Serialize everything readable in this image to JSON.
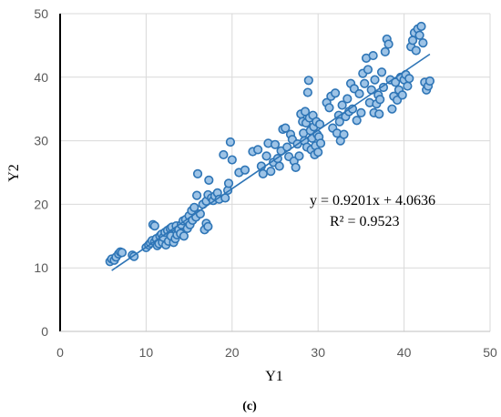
{
  "chart_data": {
    "type": "scatter",
    "title": "",
    "xlabel": "Y1",
    "ylabel": "Y2",
    "xlim": [
      0,
      50
    ],
    "ylim": [
      0,
      50
    ],
    "x_ticks": [
      "0",
      "10",
      "20",
      "30",
      "40",
      "50"
    ],
    "y_ticks": [
      "0",
      "10",
      "20",
      "30",
      "40",
      "50"
    ],
    "grid": true,
    "legend": "none",
    "panel_label": "(c)",
    "colors": {
      "marker_fill": "#9dc3e6",
      "marker_edge": "#2e75b6",
      "trendline": "#2e75b6",
      "grid": "#d9d9d9"
    },
    "trendline": {
      "type": "linear",
      "slope": 0.9201,
      "intercept": 4.0636,
      "x_range": [
        6,
        43
      ],
      "equation_label": "y = 0.9201x + 4.0636",
      "r2_label": "R² = 0.9523"
    },
    "series": [
      {
        "points": [
          [
            5.8,
            11.0
          ],
          [
            6.0,
            11.4
          ],
          [
            6.3,
            11.2
          ],
          [
            6.5,
            11.7
          ],
          [
            6.8,
            12.2
          ],
          [
            7.0,
            12.5
          ],
          [
            7.2,
            12.4
          ],
          [
            8.4,
            12.0
          ],
          [
            8.6,
            11.8
          ],
          [
            10.0,
            13.2
          ],
          [
            10.3,
            13.6
          ],
          [
            10.5,
            13.9
          ],
          [
            10.7,
            14.3
          ],
          [
            10.8,
            16.8
          ],
          [
            11.0,
            16.6
          ],
          [
            11.0,
            14.1
          ],
          [
            11.2,
            14.6
          ],
          [
            11.3,
            13.5
          ],
          [
            11.5,
            13.8
          ],
          [
            11.6,
            15.0
          ],
          [
            11.8,
            15.3
          ],
          [
            11.9,
            14.0
          ],
          [
            12.0,
            14.8
          ],
          [
            12.2,
            15.6
          ],
          [
            12.3,
            13.6
          ],
          [
            12.5,
            15.9
          ],
          [
            12.6,
            14.2
          ],
          [
            12.8,
            16.2
          ],
          [
            12.9,
            15.0
          ],
          [
            13.0,
            16.4
          ],
          [
            13.2,
            14.0
          ],
          [
            13.4,
            14.6
          ],
          [
            13.5,
            16.6
          ],
          [
            13.6,
            15.2
          ],
          [
            13.8,
            16.0
          ],
          [
            14.0,
            15.4
          ],
          [
            14.1,
            16.8
          ],
          [
            14.3,
            17.4
          ],
          [
            14.4,
            15.0
          ],
          [
            14.6,
            17.6
          ],
          [
            14.8,
            16.2
          ],
          [
            15.0,
            18.2
          ],
          [
            15.1,
            16.8
          ],
          [
            15.3,
            19.0
          ],
          [
            15.4,
            17.5
          ],
          [
            15.6,
            19.5
          ],
          [
            15.8,
            18.0
          ],
          [
            15.9,
            21.4
          ],
          [
            16.0,
            24.8
          ],
          [
            16.3,
            18.5
          ],
          [
            16.6,
            20.0
          ],
          [
            16.8,
            16.0
          ],
          [
            17.0,
            17.0
          ],
          [
            17.2,
            16.5
          ],
          [
            17.0,
            20.5
          ],
          [
            17.2,
            21.5
          ],
          [
            17.3,
            23.8
          ],
          [
            17.6,
            21.0
          ],
          [
            17.8,
            20.6
          ],
          [
            18.0,
            21.3
          ],
          [
            18.3,
            21.8
          ],
          [
            18.5,
            20.8
          ],
          [
            19.2,
            21.0
          ],
          [
            19.5,
            22.2
          ],
          [
            19.6,
            23.3
          ],
          [
            19.8,
            29.8
          ],
          [
            20.0,
            27.0
          ],
          [
            19.0,
            27.8
          ],
          [
            20.8,
            25.0
          ],
          [
            21.5,
            25.4
          ],
          [
            22.4,
            28.3
          ],
          [
            23.0,
            28.6
          ],
          [
            23.4,
            26.0
          ],
          [
            23.6,
            24.8
          ],
          [
            24.0,
            27.6
          ],
          [
            24.2,
            29.6
          ],
          [
            24.5,
            25.2
          ],
          [
            24.8,
            26.6
          ],
          [
            25.0,
            29.4
          ],
          [
            25.3,
            27.2
          ],
          [
            25.5,
            26.0
          ],
          [
            25.7,
            28.4
          ],
          [
            25.9,
            31.8
          ],
          [
            26.2,
            32.0
          ],
          [
            26.4,
            29.0
          ],
          [
            26.6,
            27.5
          ],
          [
            26.8,
            31.0
          ],
          [
            27.0,
            30.2
          ],
          [
            27.2,
            26.8
          ],
          [
            27.4,
            25.8
          ],
          [
            27.6,
            29.5
          ],
          [
            27.8,
            27.6
          ],
          [
            28.0,
            34.2
          ],
          [
            28.2,
            33.0
          ],
          [
            28.3,
            31.2
          ],
          [
            28.4,
            30.0
          ],
          [
            28.5,
            34.6
          ],
          [
            28.6,
            32.8
          ],
          [
            28.7,
            29.0
          ],
          [
            28.8,
            37.6
          ],
          [
            28.9,
            39.5
          ],
          [
            29.0,
            33.6
          ],
          [
            29.1,
            31.6
          ],
          [
            29.2,
            28.6
          ],
          [
            29.3,
            30.4
          ],
          [
            29.4,
            34.0
          ],
          [
            29.5,
            32.2
          ],
          [
            29.6,
            27.8
          ],
          [
            29.7,
            29.2
          ],
          [
            29.8,
            33.0
          ],
          [
            29.9,
            31.0
          ],
          [
            30.0,
            28.2
          ],
          [
            30.1,
            30.6
          ],
          [
            30.2,
            32.6
          ],
          [
            30.3,
            29.6
          ],
          [
            31.0,
            36.0
          ],
          [
            31.3,
            35.2
          ],
          [
            31.5,
            37.0
          ],
          [
            31.7,
            32.0
          ],
          [
            32.0,
            37.5
          ],
          [
            32.2,
            31.2
          ],
          [
            32.4,
            34.0
          ],
          [
            32.5,
            33.0
          ],
          [
            32.6,
            30.0
          ],
          [
            32.8,
            35.6
          ],
          [
            33.0,
            31.0
          ],
          [
            33.2,
            33.8
          ],
          [
            33.4,
            36.6
          ],
          [
            33.6,
            34.6
          ],
          [
            33.8,
            39.0
          ],
          [
            34.0,
            35.0
          ],
          [
            34.2,
            38.2
          ],
          [
            34.5,
            33.2
          ],
          [
            34.8,
            37.4
          ],
          [
            35.0,
            34.4
          ],
          [
            35.2,
            40.6
          ],
          [
            35.4,
            39.0
          ],
          [
            35.6,
            43.0
          ],
          [
            35.8,
            41.2
          ],
          [
            36.0,
            36.0
          ],
          [
            36.2,
            38.0
          ],
          [
            36.4,
            43.4
          ],
          [
            36.5,
            34.4
          ],
          [
            36.6,
            39.6
          ],
          [
            36.8,
            35.8
          ],
          [
            37.0,
            37.2
          ],
          [
            37.1,
            34.2
          ],
          [
            37.2,
            36.5
          ],
          [
            37.4,
            40.8
          ],
          [
            37.6,
            38.4
          ],
          [
            37.8,
            44.0
          ],
          [
            38.0,
            46.0
          ],
          [
            38.2,
            45.2
          ],
          [
            38.4,
            39.6
          ],
          [
            38.6,
            35.0
          ],
          [
            38.8,
            37.0
          ],
          [
            39.0,
            39.2
          ],
          [
            39.2,
            36.4
          ],
          [
            39.4,
            38.0
          ],
          [
            39.6,
            40.0
          ],
          [
            39.8,
            37.2
          ],
          [
            40.0,
            39.6
          ],
          [
            40.2,
            40.4
          ],
          [
            40.4,
            38.6
          ],
          [
            40.6,
            39.8
          ],
          [
            40.8,
            44.8
          ],
          [
            41.0,
            45.8
          ],
          [
            41.2,
            47.0
          ],
          [
            41.4,
            44.2
          ],
          [
            41.6,
            47.6
          ],
          [
            41.8,
            46.6
          ],
          [
            42.0,
            48.0
          ],
          [
            42.2,
            45.4
          ],
          [
            42.4,
            39.2
          ],
          [
            42.6,
            38.0
          ],
          [
            42.8,
            38.6
          ],
          [
            43.0,
            39.4
          ]
        ]
      }
    ]
  }
}
